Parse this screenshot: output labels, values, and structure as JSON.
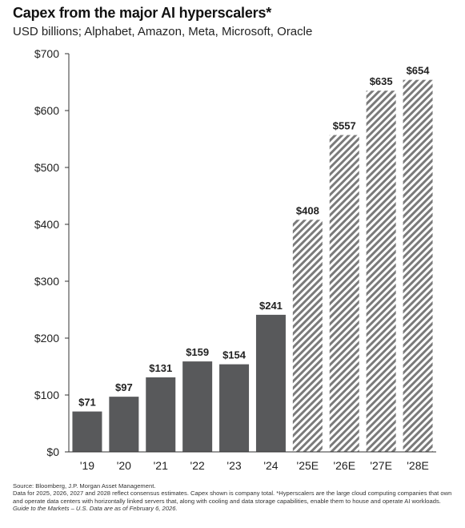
{
  "title": "Capex from the major AI hyperscalers*",
  "subtitle": "USD billions; Alphabet, Amazon, Meta, Microsoft, Oracle",
  "chart_data": {
    "type": "bar",
    "categories": [
      "'19",
      "'20",
      "'21",
      "'22",
      "'23",
      "'24",
      "'25E",
      "'26E",
      "'27E",
      "'28E"
    ],
    "values": [
      71,
      97,
      131,
      159,
      154,
      241,
      408,
      557,
      635,
      654
    ],
    "data_labels": [
      "$71",
      "$97",
      "$131",
      "$159",
      "$154",
      "$241",
      "$408",
      "$557",
      "$635",
      "$654"
    ],
    "estimated": [
      false,
      false,
      false,
      false,
      false,
      false,
      true,
      true,
      true,
      true
    ],
    "ylim": [
      0,
      700
    ],
    "yticks": [
      0,
      100,
      200,
      300,
      400,
      500,
      600,
      700
    ],
    "ytick_labels": [
      "$0",
      "$100",
      "$200",
      "$300",
      "$400",
      "$500",
      "$600",
      "$700"
    ],
    "xlabel": "",
    "ylabel": "",
    "grid": false,
    "colors": {
      "actual": "#58595b",
      "estimate_stripe": "#7a7a7a",
      "axis": "#333333"
    }
  },
  "footer": {
    "source": "Source: Bloomberg, J.P. Morgan Asset Management.",
    "note": "Data for 2025, 2026, 2027 and 2028 reflect consensus estimates. Capex shown is company total. *Hyperscalers are the large cloud computing companies that own and operate data centers with horizontally linked servers that, along with cooling and data storage capabilities, enable them to house and operate AI workloads.",
    "guide": "Guide to the Markets – U.S. Data are as of February 6, 2026."
  }
}
